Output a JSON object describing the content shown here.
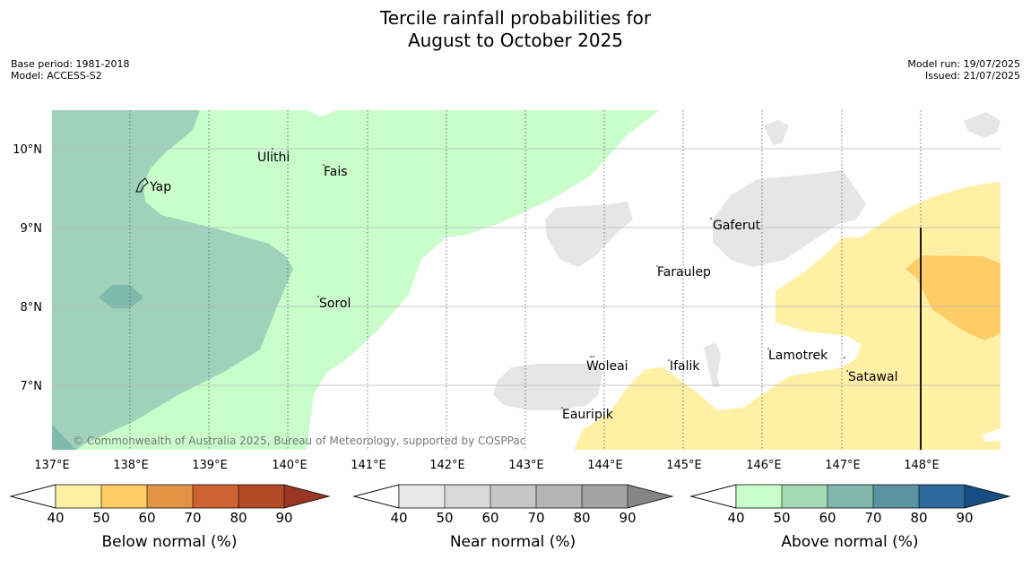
{
  "title_line1": "Tercile rainfall probabilities for",
  "title_line2": "August to October 2025",
  "meta_left": [
    "Base period: 1981-2018",
    "Model: ACCESS-S2"
  ],
  "meta_right": [
    "Model run: 19/07/2025",
    "Issued: 21/07/2025"
  ],
  "copyright": "© Commonwealth of Australia 2025, Bureau of Meteorology, supported by COSPPac",
  "lat_labels": [
    "10°N",
    "9°N",
    "8°N",
    "7°N"
  ],
  "lon_labels": [
    "137°E",
    "138°E",
    "139°E",
    "140°E",
    "141°E",
    "142°E",
    "143°E",
    "144°E",
    "145°E",
    "146°E",
    "147°E",
    "148°E"
  ],
  "places": [
    "Yap",
    "Ulithi",
    "Fais",
    "Sorol",
    "Gaferut",
    "Faraulep",
    "Woleai",
    "Ifalik",
    "Lamotrek",
    "Satawal",
    "Eauripik"
  ],
  "colorbars": [
    {
      "label": "Below normal (%)",
      "colors": [
        "#fff0a6",
        "#ffcc66",
        "#e09444",
        "#cf6231",
        "#b24a26",
        "#9a3623"
      ]
    },
    {
      "label": "Near normal (%)",
      "colors": [
        "#e7e7e7",
        "#d8d8d8",
        "#c6c6c6",
        "#b4b4b4",
        "#a2a2a2",
        "#858585"
      ]
    },
    {
      "label": "Above normal (%)",
      "colors": [
        "#c9fecb",
        "#a6d8b6",
        "#82b8ac",
        "#5a94a2",
        "#2f6a9c",
        "#174d82"
      ]
    }
  ],
  "colorbar_ticks": [
    "40",
    "50",
    "60",
    "70",
    "80",
    "90"
  ]
}
